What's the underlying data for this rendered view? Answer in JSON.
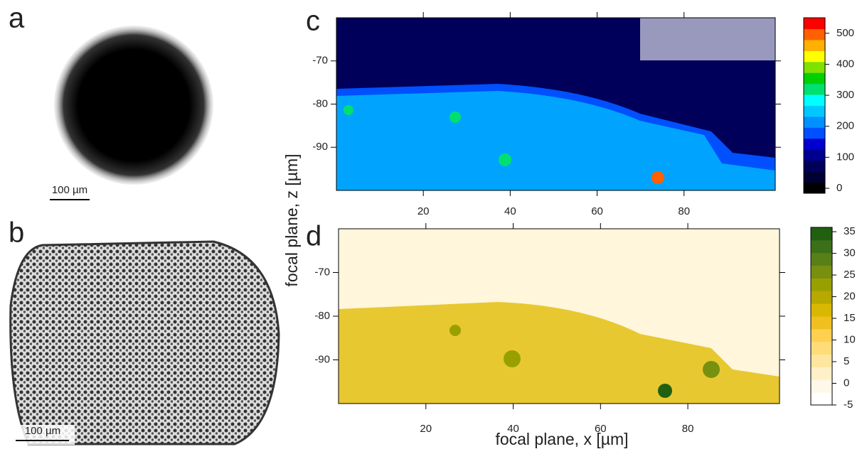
{
  "panels": {
    "a": {
      "label": "a",
      "scale_bar": "100 µm"
    },
    "b": {
      "label": "b",
      "scale_bar": "100 µm"
    }
  },
  "shared": {
    "x_label": "focal plane, x [µm]",
    "y_label": "focal plane, z [µm]"
  },
  "chart_data": [
    {
      "type": "heatmap",
      "panel_label": "c",
      "xlim": [
        0,
        101
      ],
      "xticks": [
        20,
        40,
        60,
        80
      ],
      "ylim": [
        -100,
        -60
      ],
      "yticks": [
        -90,
        -80,
        -70
      ],
      "colorbar": {
        "lim": [
          -16,
          550
        ],
        "ticks": [
          0,
          100,
          200,
          300,
          400,
          500
        ],
        "colors": [
          "#000000",
          "#000033",
          "#00005a",
          "#000090",
          "#0000d0",
          "#0050ff",
          "#0090ff",
          "#00c8ff",
          "#00ffff",
          "#00e070",
          "#00d000",
          "#80e000",
          "#ffff00",
          "#ffb000",
          "#ff6000",
          "#ff0000"
        ]
      }
    },
    {
      "type": "heatmap",
      "panel_label": "d",
      "xlim": [
        0,
        101
      ],
      "xticks": [
        20,
        40,
        60,
        80
      ],
      "ylim": [
        -100,
        -60
      ],
      "yticks": [
        -90,
        -80,
        -70
      ],
      "colorbar": {
        "lim": [
          -5,
          36
        ],
        "ticks": [
          -5,
          0,
          5,
          10,
          15,
          20,
          25,
          30,
          35
        ],
        "colors": [
          "#ffffff",
          "#fff8e8",
          "#fff0c8",
          "#ffe6a0",
          "#ffdc78",
          "#ffd050",
          "#f0c020",
          "#d8b800",
          "#b8a800",
          "#98a000",
          "#789010",
          "#588018",
          "#3c7018",
          "#206010"
        ]
      }
    }
  ]
}
